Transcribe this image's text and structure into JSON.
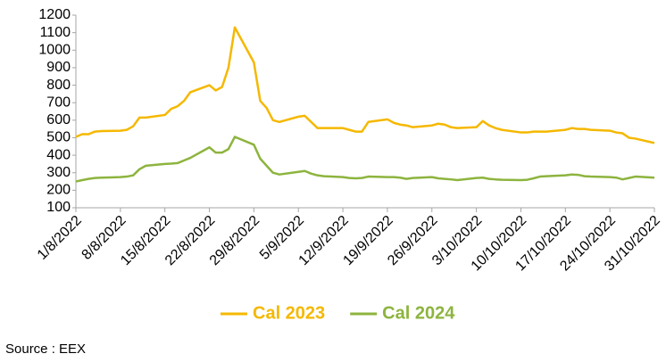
{
  "chart_data": {
    "type": "line",
    "x": [
      "1/8/2022",
      "2/8/2022",
      "3/8/2022",
      "4/8/2022",
      "5/8/2022",
      "8/8/2022",
      "9/8/2022",
      "10/8/2022",
      "11/8/2022",
      "12/8/2022",
      "15/8/2022",
      "16/8/2022",
      "17/8/2022",
      "18/8/2022",
      "19/8/2022",
      "22/8/2022",
      "23/8/2022",
      "24/8/2022",
      "25/8/2022",
      "26/8/2022",
      "29/8/2022",
      "30/8/2022",
      "31/8/2022",
      "1/9/2022",
      "2/9/2022",
      "5/9/2022",
      "6/9/2022",
      "7/9/2022",
      "8/9/2022",
      "9/9/2022",
      "12/9/2022",
      "13/9/2022",
      "14/9/2022",
      "15/9/2022",
      "16/9/2022",
      "19/9/2022",
      "20/9/2022",
      "21/9/2022",
      "22/9/2022",
      "23/9/2022",
      "26/9/2022",
      "27/9/2022",
      "28/9/2022",
      "29/9/2022",
      "30/9/2022",
      "3/10/2022",
      "4/10/2022",
      "5/10/2022",
      "6/10/2022",
      "7/10/2022",
      "10/10/2022",
      "11/10/2022",
      "12/10/2022",
      "13/10/2022",
      "14/10/2022",
      "17/10/2022",
      "18/10/2022",
      "19/10/2022",
      "20/10/2022",
      "21/10/2022",
      "24/10/2022",
      "25/10/2022",
      "26/10/2022",
      "27/10/2022",
      "28/10/2022",
      "31/10/2022"
    ],
    "series": [
      {
        "name": "Cal 2023",
        "color": "#f5b800",
        "values": [
          505,
          520,
          520,
          535,
          538,
          540,
          545,
          565,
          615,
          615,
          630,
          665,
          680,
          710,
          760,
          800,
          770,
          790,
          900,
          1130,
          930,
          710,
          670,
          600,
          590,
          620,
          625,
          590,
          555,
          555,
          555,
          545,
          535,
          535,
          590,
          605,
          585,
          575,
          570,
          560,
          570,
          580,
          575,
          560,
          555,
          560,
          595,
          570,
          555,
          545,
          530,
          530,
          535,
          535,
          535,
          545,
          555,
          550,
          550,
          545,
          540,
          530,
          525,
          500,
          495,
          470
        ]
      },
      {
        "name": "Cal 2024",
        "color": "#8db43e",
        "values": [
          250,
          258,
          265,
          270,
          272,
          275,
          278,
          285,
          320,
          340,
          350,
          352,
          355,
          370,
          385,
          445,
          415,
          415,
          435,
          505,
          460,
          380,
          340,
          300,
          290,
          305,
          310,
          295,
          285,
          280,
          275,
          270,
          268,
          270,
          278,
          275,
          275,
          272,
          265,
          270,
          275,
          268,
          265,
          262,
          258,
          270,
          272,
          265,
          262,
          260,
          258,
          260,
          268,
          278,
          280,
          285,
          290,
          288,
          280,
          278,
          275,
          272,
          262,
          270,
          278,
          272
        ]
      }
    ],
    "xlim": [
      "1/8/2022",
      "31/10/2022"
    ],
    "xticks": [
      "1/8/2022",
      "8/8/2022",
      "15/8/2022",
      "22/8/2022",
      "29/8/2022",
      "5/9/2022",
      "12/9/2022",
      "19/9/2022",
      "26/9/2022",
      "3/10/2022",
      "10/10/2022",
      "17/10/2022",
      "24/10/2022",
      "31/10/2022"
    ],
    "ylim": [
      100,
      1200
    ],
    "yticks": [
      100,
      200,
      300,
      400,
      500,
      600,
      700,
      800,
      900,
      1000,
      1100,
      1200
    ],
    "grid": false,
    "legend": "bottom",
    "source": "Source : EEX"
  }
}
